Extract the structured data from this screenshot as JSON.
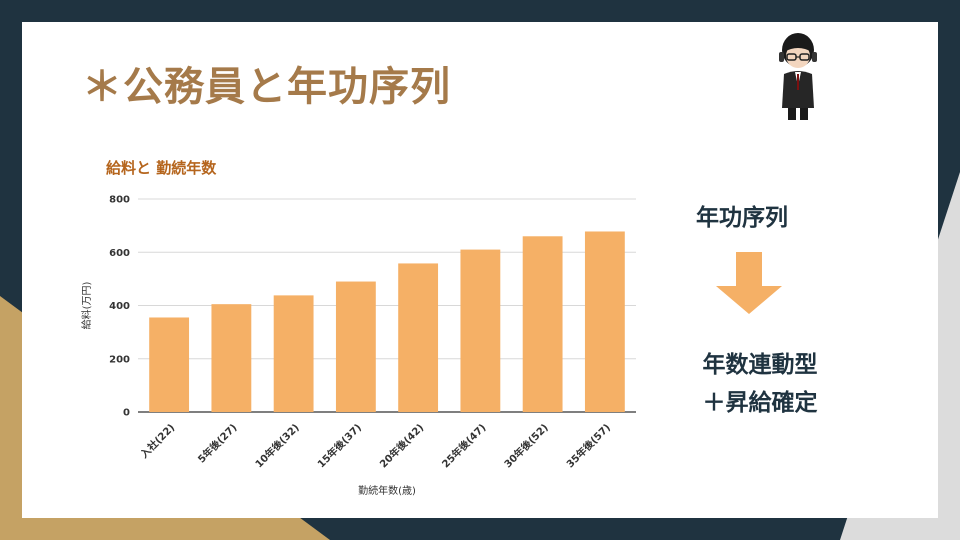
{
  "slide": {
    "title": "＊公務員と年功序列",
    "right_top": "年功序列",
    "right_bottom_line1": "年数連動型",
    "right_bottom_line2": "＋昇給確定"
  },
  "colors": {
    "background_dark": "#1f3340",
    "background_gold": "#c5a264",
    "title": "#a57a4a",
    "bar": "#f5b066",
    "arrow": "#f5b066",
    "chart_title": "#b5651d"
  },
  "chart_data": {
    "type": "bar",
    "title": "給料と 勤続年数",
    "xlabel": "勤続年数(歳)",
    "ylabel": "給料(万円)",
    "ylim": [
      0,
      800
    ],
    "yticks": [
      0,
      200,
      400,
      600,
      800
    ],
    "categories": [
      "入社(22)",
      "5年後(27)",
      "10年後(32)",
      "15年後(37)",
      "20年後(42)",
      "25年後(47)",
      "30年後(52)",
      "35年後(57)"
    ],
    "values": [
      355,
      405,
      438,
      490,
      558,
      610,
      660,
      678
    ],
    "grid": true,
    "legend": "none"
  }
}
